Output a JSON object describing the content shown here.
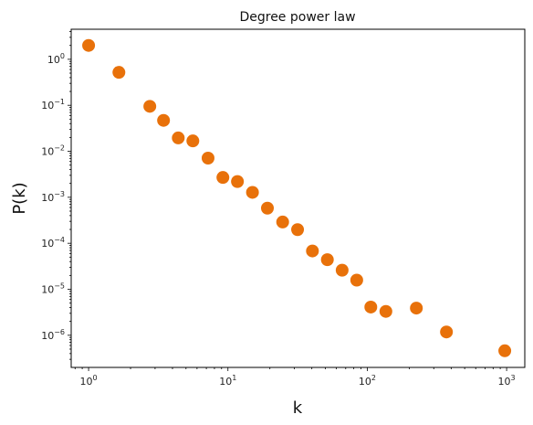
{
  "chart_data": {
    "type": "scatter",
    "title": "Degree power law",
    "xlabel": "k",
    "ylabel": "P(k)",
    "xscale": "log",
    "yscale": "log",
    "xlim": [
      0.75,
      1350
    ],
    "ylim": [
      2e-07,
      4.5
    ],
    "grid": false,
    "marker_color": "#E8710A",
    "x_ticks": [
      {
        "value": 1,
        "base": "10",
        "exp": "0"
      },
      {
        "value": 10,
        "base": "10",
        "exp": "1"
      },
      {
        "value": 100,
        "base": "10",
        "exp": "2"
      },
      {
        "value": 1000,
        "base": "10",
        "exp": "3"
      }
    ],
    "y_ticks": [
      {
        "value": 1,
        "base": "10",
        "exp": "0"
      },
      {
        "value": 0.1,
        "base": "10",
        "exp": "−1"
      },
      {
        "value": 0.01,
        "base": "10",
        "exp": "−2"
      },
      {
        "value": 0.001,
        "base": "10",
        "exp": "−3"
      },
      {
        "value": 0.0001,
        "base": "10",
        "exp": "−4"
      },
      {
        "value": 1e-05,
        "base": "10",
        "exp": "−5"
      },
      {
        "value": 1e-06,
        "base": "10",
        "exp": "−6"
      }
    ],
    "points": [
      {
        "x": 1.0,
        "y": 2.0
      },
      {
        "x": 1.65,
        "y": 0.52
      },
      {
        "x": 2.75,
        "y": 0.095
      },
      {
        "x": 3.45,
        "y": 0.047
      },
      {
        "x": 4.4,
        "y": 0.0195
      },
      {
        "x": 5.6,
        "y": 0.0168
      },
      {
        "x": 7.2,
        "y": 0.0071
      },
      {
        "x": 9.2,
        "y": 0.0027
      },
      {
        "x": 11.7,
        "y": 0.0022
      },
      {
        "x": 15.0,
        "y": 0.00128
      },
      {
        "x": 19.2,
        "y": 0.00058
      },
      {
        "x": 24.7,
        "y": 0.00029
      },
      {
        "x": 31.6,
        "y": 0.000198
      },
      {
        "x": 40.4,
        "y": 6.8e-05
      },
      {
        "x": 51.7,
        "y": 4.4e-05
      },
      {
        "x": 66.0,
        "y": 2.6e-05
      },
      {
        "x": 84.0,
        "y": 1.58e-05
      },
      {
        "x": 106.0,
        "y": 4.1e-06
      },
      {
        "x": 136.0,
        "y": 3.3e-06
      },
      {
        "x": 225.0,
        "y": 3.9e-06
      },
      {
        "x": 370.0,
        "y": 1.18e-06
      },
      {
        "x": 970.0,
        "y": 4.6e-07
      }
    ]
  }
}
